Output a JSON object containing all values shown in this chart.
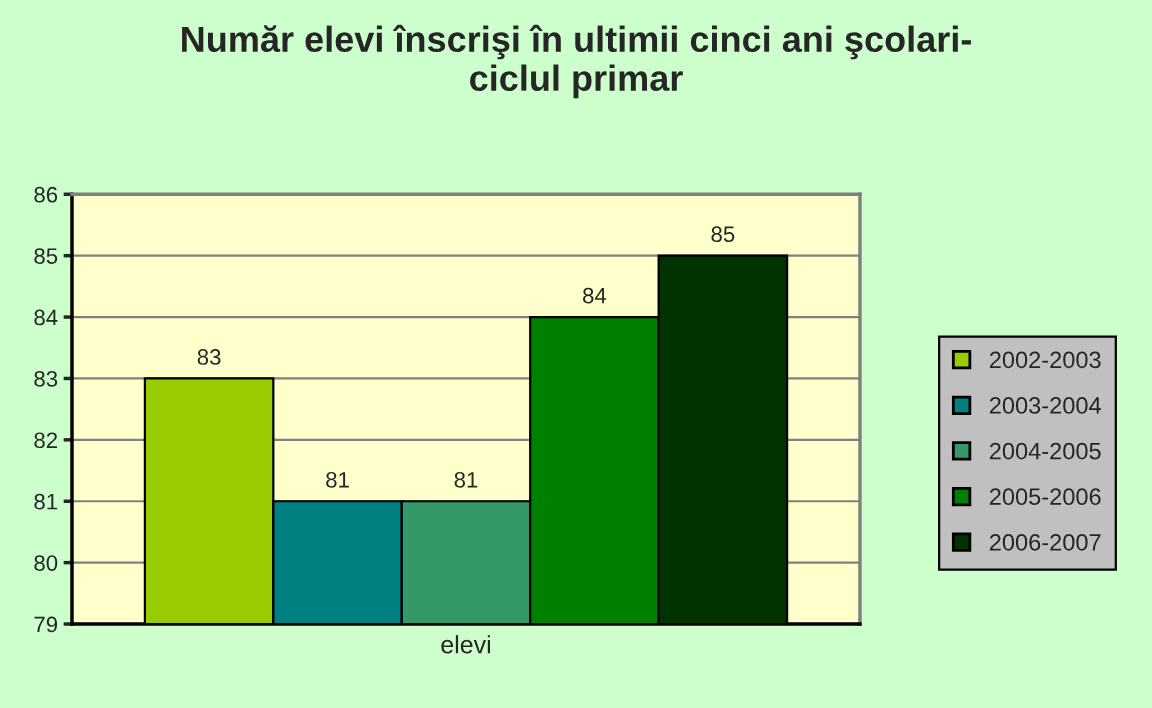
{
  "chart_data": {
    "type": "bar",
    "title": "Număr elevi înscrişi în ultimii cinci ani şcolari-\nciclul primar",
    "categories": [
      "elevi"
    ],
    "series": [
      {
        "name": "2002-2003",
        "color": "#99cc00",
        "values": [
          83
        ]
      },
      {
        "name": "2003-2004",
        "color": "#008080",
        "values": [
          81
        ]
      },
      {
        "name": "2004-2005",
        "color": "#339966",
        "values": [
          81
        ]
      },
      {
        "name": "2005-2006",
        "color": "#008000",
        "values": [
          84
        ]
      },
      {
        "name": "2006-2007",
        "color": "#003300",
        "values": [
          85
        ]
      }
    ],
    "ylim": [
      79,
      86
    ],
    "yticks": [
      79,
      80,
      81,
      82,
      83,
      84,
      85,
      86
    ],
    "grid": "y",
    "legend": "right",
    "data_labels": true
  }
}
